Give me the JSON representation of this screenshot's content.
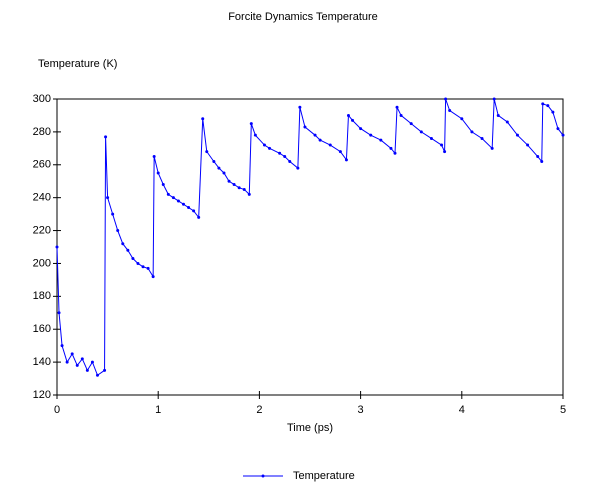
{
  "chart_data": {
    "type": "line",
    "title": "Forcite Dynamics Temperature",
    "ylabel": "Temperature (K)",
    "xlabel": "Time (ps)",
    "x": [
      0,
      0.02,
      0.05,
      0.1,
      0.15,
      0.2,
      0.25,
      0.3,
      0.35,
      0.4,
      0.47,
      0.48,
      0.5,
      0.55,
      0.6,
      0.65,
      0.7,
      0.75,
      0.8,
      0.85,
      0.9,
      0.95,
      0.96,
      1.0,
      1.05,
      1.1,
      1.15,
      1.2,
      1.25,
      1.3,
      1.35,
      1.4,
      1.44,
      1.48,
      1.55,
      1.6,
      1.65,
      1.7,
      1.75,
      1.8,
      1.85,
      1.9,
      1.92,
      1.96,
      2.05,
      2.1,
      2.2,
      2.25,
      2.3,
      2.38,
      2.4,
      2.45,
      2.55,
      2.6,
      2.7,
      2.8,
      2.86,
      2.88,
      2.92,
      3.0,
      3.1,
      3.2,
      3.3,
      3.34,
      3.36,
      3.4,
      3.5,
      3.6,
      3.7,
      3.8,
      3.83,
      3.84,
      3.88,
      4.0,
      4.1,
      4.2,
      4.3,
      4.32,
      4.36,
      4.45,
      4.55,
      4.65,
      4.75,
      4.79,
      4.8,
      4.85,
      4.9,
      4.95,
      5.0
    ],
    "series": [
      {
        "name": "Temperature",
        "color": "#0000ff",
        "values": [
          210,
          170,
          150,
          140,
          145,
          138,
          142,
          135,
          140,
          132,
          135,
          277,
          240,
          230,
          220,
          212,
          208,
          203,
          200,
          198,
          197,
          192,
          265,
          255,
          248,
          242,
          240,
          238,
          236,
          234,
          232,
          228,
          288,
          268,
          262,
          258,
          255,
          250,
          248,
          246,
          245,
          242,
          285,
          278,
          272,
          270,
          267,
          265,
          262,
          258,
          295,
          283,
          278,
          275,
          272,
          268,
          263,
          290,
          287,
          282,
          278,
          275,
          270,
          267,
          295,
          290,
          285,
          280,
          276,
          272,
          268,
          300,
          293,
          288,
          280,
          276,
          270,
          300,
          290,
          286,
          278,
          272,
          265,
          262,
          297,
          296,
          292,
          282,
          278
        ]
      }
    ],
    "xlim": [
      0,
      5
    ],
    "xticks": [
      0,
      1,
      2,
      3,
      4,
      5
    ],
    "ylim": [
      120,
      300
    ],
    "yticks": [
      120,
      140,
      160,
      180,
      200,
      220,
      240,
      260,
      280,
      300
    ],
    "legend": "bottom"
  }
}
